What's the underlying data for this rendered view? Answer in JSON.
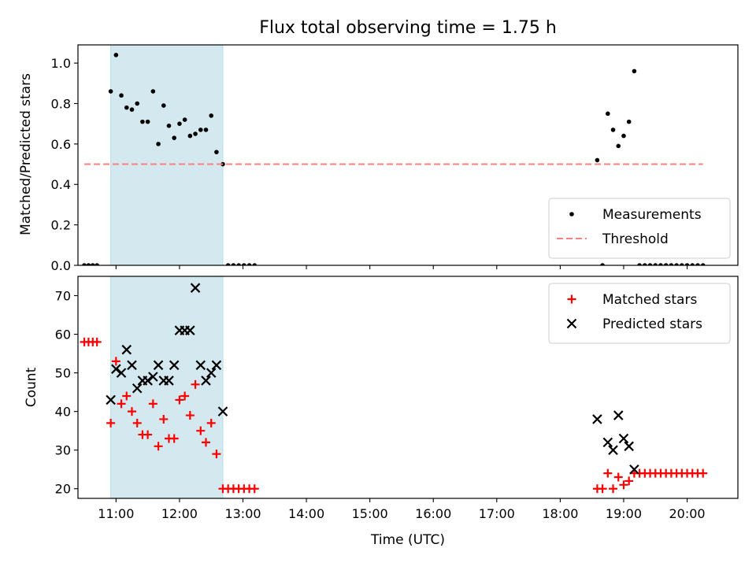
{
  "chart_data": [
    {
      "type": "scatter",
      "title": "Flux total observing time = 1.75 h",
      "xlabel": "",
      "ylabel": "Matched/Predicted stars",
      "ylim": [
        0,
        1.09
      ],
      "yticks": [
        0.0,
        0.2,
        0.4,
        0.6,
        0.8,
        1.0
      ],
      "ytick_labels": [
        "0.0",
        "0.2",
        "0.4",
        "0.6",
        "0.8",
        "1.0"
      ],
      "xlim": [
        "10:24",
        "20:48"
      ],
      "xticks": [
        "11:00",
        "12:00",
        "13:00",
        "14:00",
        "15:00",
        "16:00",
        "17:00",
        "18:00",
        "19:00",
        "20:00"
      ],
      "shaded_span": [
        "10:55",
        "12:41"
      ],
      "shade_color": "#d3e9ef",
      "legend_position": "lower-right",
      "series": [
        {
          "name": "Measurements",
          "marker": "dot",
          "color": "#000000",
          "points": [
            [
              "10:30",
              0
            ],
            [
              "10:34",
              0
            ],
            [
              "10:38",
              0
            ],
            [
              "10:42",
              0
            ],
            [
              "10:55",
              0.86
            ],
            [
              "11:00",
              1.04
            ],
            [
              "11:05",
              0.84
            ],
            [
              "11:10",
              0.78
            ],
            [
              "11:15",
              0.77
            ],
            [
              "11:20",
              0.8
            ],
            [
              "11:25",
              0.71
            ],
            [
              "11:30",
              0.71
            ],
            [
              "11:35",
              0.86
            ],
            [
              "11:40",
              0.6
            ],
            [
              "11:45",
              0.79
            ],
            [
              "11:50",
              0.69
            ],
            [
              "11:55",
              0.63
            ],
            [
              "12:00",
              0.7
            ],
            [
              "12:05",
              0.72
            ],
            [
              "12:10",
              0.64
            ],
            [
              "12:15",
              0.65
            ],
            [
              "12:20",
              0.67
            ],
            [
              "12:25",
              0.67
            ],
            [
              "12:30",
              0.74
            ],
            [
              "12:35",
              0.56
            ],
            [
              "12:41",
              0.5
            ],
            [
              "12:46",
              0
            ],
            [
              "12:51",
              0
            ],
            [
              "12:56",
              0
            ],
            [
              "13:01",
              0
            ],
            [
              "13:06",
              0
            ],
            [
              "13:11",
              0
            ],
            [
              "18:35",
              0.52
            ],
            [
              "18:40",
              0
            ],
            [
              "18:45",
              0.75
            ],
            [
              "18:50",
              0.67
            ],
            [
              "18:55",
              0.59
            ],
            [
              "19:00",
              0.64
            ],
            [
              "19:05",
              0.71
            ],
            [
              "19:10",
              0.96
            ],
            [
              "19:15",
              0
            ],
            [
              "19:20",
              0
            ],
            [
              "19:25",
              0
            ],
            [
              "19:30",
              0
            ],
            [
              "19:35",
              0
            ],
            [
              "19:40",
              0
            ],
            [
              "19:45",
              0
            ],
            [
              "19:50",
              0
            ],
            [
              "19:55",
              0
            ],
            [
              "20:00",
              0
            ],
            [
              "20:05",
              0
            ],
            [
              "20:10",
              0
            ],
            [
              "20:15",
              0
            ]
          ]
        },
        {
          "name": "Threshold",
          "marker": "dashed-line",
          "color": "#ff7f7f",
          "points": [
            [
              "10:30",
              0.5
            ],
            [
              "20:15",
              0.5
            ]
          ]
        }
      ]
    },
    {
      "type": "scatter",
      "xlabel": "Time (UTC)",
      "ylabel": "Count",
      "ylim": [
        17.5,
        75
      ],
      "yticks": [
        20,
        30,
        40,
        50,
        60,
        70
      ],
      "xlim": [
        "10:24",
        "20:48"
      ],
      "xticks": [
        "11:00",
        "12:00",
        "13:00",
        "14:00",
        "15:00",
        "16:00",
        "17:00",
        "18:00",
        "19:00",
        "20:00"
      ],
      "xtick_labels": [
        "11:00",
        "12:00",
        "13:00",
        "14:00",
        "15:00",
        "16:00",
        "17:00",
        "18:00",
        "19:00",
        "20:00"
      ],
      "shaded_span": [
        "10:55",
        "12:41"
      ],
      "shade_color": "#d3e9ef",
      "legend_position": "upper-right",
      "series": [
        {
          "name": "Matched stars",
          "marker": "plus",
          "color": "#ff0000",
          "points": [
            [
              "10:30",
              58
            ],
            [
              "10:34",
              58
            ],
            [
              "10:38",
              58
            ],
            [
              "10:42",
              58
            ],
            [
              "10:55",
              37
            ],
            [
              "11:00",
              53
            ],
            [
              "11:05",
              42
            ],
            [
              "11:10",
              44
            ],
            [
              "11:15",
              40
            ],
            [
              "11:20",
              37
            ],
            [
              "11:25",
              34
            ],
            [
              "11:30",
              34
            ],
            [
              "11:35",
              42
            ],
            [
              "11:40",
              31
            ],
            [
              "11:45",
              38
            ],
            [
              "11:50",
              33
            ],
            [
              "11:55",
              33
            ],
            [
              "12:00",
              43
            ],
            [
              "12:05",
              44
            ],
            [
              "12:10",
              39
            ],
            [
              "12:15",
              47
            ],
            [
              "12:20",
              35
            ],
            [
              "12:25",
              32
            ],
            [
              "12:30",
              37
            ],
            [
              "12:35",
              29
            ],
            [
              "12:41",
              20
            ],
            [
              "12:46",
              20
            ],
            [
              "12:51",
              20
            ],
            [
              "12:56",
              20
            ],
            [
              "13:01",
              20
            ],
            [
              "13:06",
              20
            ],
            [
              "13:11",
              20
            ],
            [
              "18:35",
              20
            ],
            [
              "18:40",
              20
            ],
            [
              "18:45",
              24
            ],
            [
              "18:50",
              20
            ],
            [
              "18:55",
              23
            ],
            [
              "19:00",
              21
            ],
            [
              "19:05",
              22
            ],
            [
              "19:10",
              24
            ],
            [
              "19:15",
              24
            ],
            [
              "19:20",
              24
            ],
            [
              "19:25",
              24
            ],
            [
              "19:30",
              24
            ],
            [
              "19:35",
              24
            ],
            [
              "19:40",
              24
            ],
            [
              "19:45",
              24
            ],
            [
              "19:50",
              24
            ],
            [
              "19:55",
              24
            ],
            [
              "20:00",
              24
            ],
            [
              "20:05",
              24
            ],
            [
              "20:10",
              24
            ],
            [
              "20:15",
              24
            ]
          ]
        },
        {
          "name": "Predicted stars",
          "marker": "x",
          "color": "#000000",
          "points": [
            [
              "10:55",
              43
            ],
            [
              "11:00",
              51
            ],
            [
              "11:05",
              50
            ],
            [
              "11:10",
              56
            ],
            [
              "11:15",
              52
            ],
            [
              "11:20",
              46
            ],
            [
              "11:25",
              48
            ],
            [
              "11:30",
              48
            ],
            [
              "11:35",
              49
            ],
            [
              "11:40",
              52
            ],
            [
              "11:45",
              48
            ],
            [
              "11:50",
              48
            ],
            [
              "11:55",
              52
            ],
            [
              "12:00",
              61
            ],
            [
              "12:05",
              61
            ],
            [
              "12:10",
              61
            ],
            [
              "12:15",
              72
            ],
            [
              "12:20",
              52
            ],
            [
              "12:25",
              48
            ],
            [
              "12:30",
              50
            ],
            [
              "12:35",
              52
            ],
            [
              "12:41",
              40
            ],
            [
              "18:35",
              38
            ],
            [
              "18:45",
              32
            ],
            [
              "18:50",
              30
            ],
            [
              "18:55",
              39
            ],
            [
              "19:00",
              33
            ],
            [
              "19:05",
              31
            ],
            [
              "19:10",
              25
            ]
          ]
        }
      ]
    }
  ]
}
